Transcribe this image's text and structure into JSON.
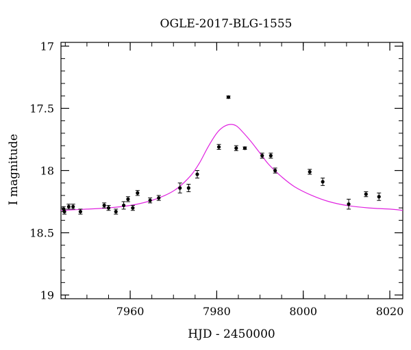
{
  "chart_data": {
    "type": "scatter",
    "title": "OGLE-2017-BLG-1555",
    "xlabel": "HJD - 2450000",
    "ylabel": "I magnitude",
    "xlim": [
      7944,
      8023
    ],
    "ylim": [
      19.03,
      16.97
    ],
    "y_inverted": true,
    "grid": false,
    "x_ticks": [
      7960,
      7980,
      8000,
      8020
    ],
    "y_ticks": [
      17,
      17.5,
      18,
      18.5,
      19
    ],
    "y_tick_labels": [
      "17",
      "17.5",
      "18",
      "18.5",
      "19"
    ],
    "x_minor_step": 5,
    "y_minor_step": 0.1,
    "colors": {
      "model": "#e020e0",
      "points": "#000000"
    },
    "series": [
      {
        "kind": "observations",
        "points": [
          {
            "x": 7944.6,
            "y": 18.31,
            "err": 0.02
          },
          {
            "x": 7944.8,
            "y": 18.33,
            "err": 0.02
          },
          {
            "x": 7945.8,
            "y": 18.29,
            "err": 0.02
          },
          {
            "x": 7946.8,
            "y": 18.29,
            "err": 0.02
          },
          {
            "x": 7948.5,
            "y": 18.33,
            "err": 0.02
          },
          {
            "x": 7954.0,
            "y": 18.28,
            "err": 0.02
          },
          {
            "x": 7955.0,
            "y": 18.3,
            "err": 0.02
          },
          {
            "x": 7956.7,
            "y": 18.33,
            "err": 0.02
          },
          {
            "x": 7958.5,
            "y": 18.28,
            "err": 0.03
          },
          {
            "x": 7959.5,
            "y": 18.23,
            "err": 0.02
          },
          {
            "x": 7960.6,
            "y": 18.3,
            "err": 0.02
          },
          {
            "x": 7961.7,
            "y": 18.18,
            "err": 0.02
          },
          {
            "x": 7964.6,
            "y": 18.24,
            "err": 0.02
          },
          {
            "x": 7966.6,
            "y": 18.22,
            "err": 0.02
          },
          {
            "x": 7971.5,
            "y": 18.14,
            "err": 0.04
          },
          {
            "x": 7973.5,
            "y": 18.14,
            "err": 0.03
          },
          {
            "x": 7975.5,
            "y": 18.03,
            "err": 0.03
          },
          {
            "x": 7980.5,
            "y": 17.81,
            "err": 0.02
          },
          {
            "x": 7982.7,
            "y": 17.41,
            "err": 0.01
          },
          {
            "x": 7984.5,
            "y": 17.82,
            "err": 0.02
          },
          {
            "x": 7986.5,
            "y": 17.82,
            "err": 0.01
          },
          {
            "x": 7990.5,
            "y": 17.88,
            "err": 0.02
          },
          {
            "x": 7992.5,
            "y": 17.88,
            "err": 0.02
          },
          {
            "x": 7993.5,
            "y": 18.0,
            "err": 0.02
          },
          {
            "x": 8001.5,
            "y": 18.01,
            "err": 0.02
          },
          {
            "x": 8004.5,
            "y": 18.09,
            "err": 0.03
          },
          {
            "x": 8010.5,
            "y": 18.27,
            "err": 0.04
          },
          {
            "x": 8014.5,
            "y": 18.19,
            "err": 0.02
          },
          {
            "x": 8017.5,
            "y": 18.21,
            "err": 0.03
          }
        ]
      },
      {
        "kind": "model",
        "x": [
          7944,
          7950,
          7955,
          7960,
          7964,
          7968,
          7971,
          7974,
          7976,
          7978,
          7980,
          7981.5,
          7983,
          7984.5,
          7986,
          7988,
          7990,
          7992,
          7995,
          7998,
          8002,
          8006,
          8010,
          8015,
          8020,
          8023
        ],
        "y": [
          18.32,
          18.31,
          18.3,
          18.28,
          18.25,
          18.2,
          18.14,
          18.04,
          17.94,
          17.81,
          17.7,
          17.65,
          17.63,
          17.64,
          17.69,
          17.77,
          17.86,
          17.95,
          18.05,
          18.13,
          18.2,
          18.25,
          18.28,
          18.3,
          18.31,
          18.32
        ]
      }
    ]
  }
}
